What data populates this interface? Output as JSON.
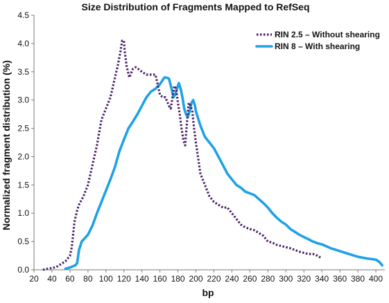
{
  "chart_data": {
    "type": "line",
    "title": "Size Distribution of Fragments Mapped to RefSeq",
    "xlabel": "bp",
    "ylabel": "Normalized fragment distribution (%)",
    "xlim": [
      20,
      410
    ],
    "ylim": [
      0,
      4.5
    ],
    "x_ticks": [
      20,
      40,
      60,
      80,
      100,
      120,
      140,
      160,
      180,
      200,
      220,
      240,
      260,
      280,
      300,
      320,
      340,
      360,
      380,
      400
    ],
    "y_ticks": [
      "0.0",
      "0.5",
      "1.0",
      "1.5",
      "2.0",
      "2.5",
      "3.0",
      "3.5",
      "4.0",
      "4.5"
    ],
    "grid": false,
    "legend_position": "top-right",
    "series": [
      {
        "name": "RIN 2.5 – Without shearing",
        "color": "#4b2369",
        "style": "dotted",
        "x": [
          30,
          35,
          40,
          45,
          50,
          55,
          60,
          62,
          65,
          68,
          70,
          75,
          80,
          85,
          90,
          95,
          100,
          105,
          110,
          113,
          116,
          118,
          120,
          121,
          123,
          126,
          130,
          133,
          136,
          140,
          145,
          150,
          155,
          160,
          163,
          166,
          170,
          172,
          174,
          176,
          178,
          180,
          182,
          184,
          186,
          188,
          190,
          192,
          194,
          196,
          198,
          200,
          205,
          210,
          215,
          220,
          225,
          230,
          235,
          240,
          245,
          250,
          255,
          260,
          265,
          270,
          275,
          280,
          285,
          290,
          295,
          300,
          305,
          310,
          315,
          320,
          325,
          330,
          335,
          340
        ],
        "values": [
          0.0,
          0.02,
          0.03,
          0.05,
          0.1,
          0.15,
          0.25,
          0.4,
          0.85,
          1.05,
          1.15,
          1.3,
          1.5,
          1.85,
          2.2,
          2.65,
          2.85,
          3.05,
          3.4,
          3.6,
          3.85,
          4.05,
          4.05,
          3.85,
          3.6,
          3.4,
          3.55,
          3.58,
          3.55,
          3.5,
          3.45,
          3.45,
          3.45,
          3.1,
          3.05,
          3.05,
          2.9,
          2.85,
          3.05,
          3.25,
          3.2,
          2.95,
          2.75,
          2.5,
          2.3,
          2.2,
          2.6,
          2.95,
          2.9,
          2.8,
          2.5,
          2.25,
          1.7,
          1.5,
          1.3,
          1.2,
          1.15,
          1.1,
          1.1,
          1.0,
          0.9,
          0.8,
          0.75,
          0.72,
          0.7,
          0.65,
          0.6,
          0.5,
          0.48,
          0.44,
          0.42,
          0.4,
          0.38,
          0.35,
          0.32,
          0.3,
          0.28,
          0.28,
          0.25,
          0.2
        ]
      },
      {
        "name": "RIN 8 – With shearing",
        "color": "#1ea1e6",
        "style": "solid",
        "x": [
          55,
          60,
          63,
          66,
          68,
          70,
          73,
          76,
          80,
          85,
          90,
          95,
          100,
          105,
          110,
          115,
          120,
          125,
          130,
          135,
          140,
          145,
          150,
          155,
          160,
          165,
          167,
          170,
          173,
          175,
          177,
          179,
          181,
          183,
          185,
          187,
          189,
          191,
          193,
          195,
          197,
          199,
          200,
          205,
          210,
          215,
          220,
          225,
          230,
          235,
          240,
          245,
          250,
          255,
          260,
          265,
          270,
          275,
          280,
          285,
          290,
          295,
          300,
          305,
          310,
          315,
          320,
          325,
          330,
          335,
          340,
          350,
          360,
          370,
          380,
          390,
          400,
          403,
          405,
          407
        ],
        "values": [
          0.02,
          0.04,
          0.06,
          0.08,
          0.12,
          0.35,
          0.5,
          0.55,
          0.62,
          0.78,
          1.0,
          1.2,
          1.4,
          1.6,
          1.82,
          2.1,
          2.3,
          2.5,
          2.62,
          2.75,
          2.9,
          3.05,
          3.15,
          3.2,
          3.28,
          3.4,
          3.4,
          3.38,
          3.2,
          3.05,
          3.1,
          3.2,
          3.3,
          3.2,
          3.05,
          2.85,
          2.75,
          2.7,
          2.8,
          2.95,
          3.0,
          2.9,
          2.8,
          2.55,
          2.35,
          2.25,
          2.15,
          2.0,
          1.85,
          1.7,
          1.6,
          1.5,
          1.45,
          1.38,
          1.35,
          1.32,
          1.25,
          1.18,
          1.1,
          1.0,
          0.92,
          0.85,
          0.8,
          0.72,
          0.67,
          0.62,
          0.58,
          0.54,
          0.5,
          0.47,
          0.45,
          0.38,
          0.33,
          0.28,
          0.23,
          0.2,
          0.18,
          0.15,
          0.12,
          0.08
        ]
      }
    ]
  }
}
